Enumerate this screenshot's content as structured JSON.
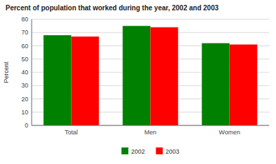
{
  "chart_data": {
    "type": "bar",
    "title": "Percent of population that worked during the year, 2002 and 2003",
    "categories": [
      "Total",
      "Men",
      "Women"
    ],
    "series": [
      {
        "name": "2002",
        "color": "#008000",
        "values": [
          68,
          75,
          62
        ]
      },
      {
        "name": "2003",
        "color": "#ff0000",
        "values": [
          67,
          74,
          61
        ]
      }
    ],
    "ylabel": "Percent",
    "ylim": [
      0,
      80
    ],
    "yticks": [
      0,
      10,
      20,
      30,
      40,
      50,
      60,
      70,
      80
    ],
    "grid": true,
    "legend": "bottom"
  }
}
